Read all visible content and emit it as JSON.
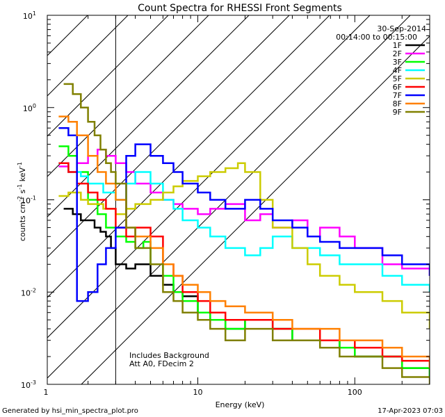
{
  "chart_data": {
    "type": "line",
    "title": "Count Spectra for RHESSI Front Segments",
    "xlabel": "Energy (keV)",
    "ylabel_parts": {
      "base": "counts cm",
      "exp1": "-2",
      "mid": " s",
      "exp2": "-1",
      "unit": " keV",
      "exp3": "-1"
    },
    "xscale": "log",
    "yscale": "log",
    "xlim": [
      1.1,
      300
    ],
    "ylim": [
      0.001,
      10
    ],
    "x_ticks": [
      {
        "v": 1,
        "label": "1"
      },
      {
        "v": 10,
        "label": "10"
      },
      {
        "v": 100,
        "label": "100"
      }
    ],
    "y_ticks": [
      {
        "v": 0.001,
        "base": "10",
        "exp": "-3"
      },
      {
        "v": 0.01,
        "base": "10",
        "exp": "-2"
      },
      {
        "v": 0.1,
        "base": "10",
        "exp": "-1"
      },
      {
        "v": 1,
        "base": "10",
        "exp": "0"
      },
      {
        "v": 10,
        "base": "10",
        "exp": "1"
      }
    ],
    "date": "30-Sep-2014",
    "time_range": "00:14:00 to 00:15:00",
    "annotation_lines": [
      "Includes Background",
      "Att A0, FDecim 2"
    ],
    "hatched_region": {
      "x0": 1.1,
      "x1": 3.0
    },
    "legend_placement": "top-right",
    "series": [
      {
        "name": "1F",
        "color": "#000000",
        "x": [
          1.4,
          1.6,
          1.8,
          2.0,
          2.2,
          2.4,
          2.6,
          2.8,
          3.0,
          3.5,
          4.0,
          5.0,
          6.0,
          7.0,
          8.0,
          10.0,
          12.0,
          15.0,
          20.0,
          30.0,
          40.0,
          60.0,
          80.0,
          100.0,
          150.0,
          200.0,
          300.0
        ],
        "y": [
          0.08,
          0.07,
          0.06,
          0.06,
          0.05,
          0.045,
          0.04,
          0.03,
          0.02,
          0.018,
          0.02,
          0.015,
          0.012,
          0.01,
          0.009,
          0.006,
          0.005,
          0.004,
          0.005,
          0.004,
          0.003,
          0.003,
          0.0025,
          0.002,
          0.002,
          0.0015,
          0.0012
        ]
      },
      {
        "name": "2F",
        "color": "#ff00ff",
        "x": [
          1.3,
          1.5,
          1.7,
          2.0,
          2.3,
          2.6,
          3.0,
          3.5,
          4.0,
          5.0,
          6.0,
          7.0,
          8.0,
          10.0,
          12.0,
          15.0,
          20.0,
          25.0,
          30.0,
          40.0,
          50.0,
          60.0,
          80.0,
          100.0,
          150.0,
          200.0,
          300.0
        ],
        "y": [
          0.23,
          0.2,
          0.25,
          0.3,
          0.35,
          0.3,
          0.25,
          0.2,
          0.15,
          0.12,
          0.1,
          0.09,
          0.08,
          0.07,
          0.08,
          0.09,
          0.06,
          0.07,
          0.05,
          0.06,
          0.04,
          0.05,
          0.04,
          0.03,
          0.02,
          0.018,
          0.015
        ]
      },
      {
        "name": "3F",
        "color": "#00ff00",
        "x": [
          1.3,
          1.5,
          1.7,
          2.0,
          2.3,
          2.6,
          3.0,
          3.5,
          4.0,
          4.5,
          5.0,
          6.0,
          7.0,
          8.0,
          10.0,
          12.0,
          15.0,
          20.0,
          30.0,
          40.0,
          60.0,
          80.0,
          100.0,
          150.0,
          200.0,
          300.0
        ],
        "y": [
          0.38,
          0.3,
          0.2,
          0.1,
          0.07,
          0.05,
          0.04,
          0.035,
          0.03,
          0.035,
          0.02,
          0.015,
          0.01,
          0.008,
          0.006,
          0.005,
          0.004,
          0.005,
          0.004,
          0.003,
          0.003,
          0.0025,
          0.002,
          0.002,
          0.0015,
          0.0012
        ]
      },
      {
        "name": "4F",
        "color": "#00ffff",
        "x": [
          1.3,
          1.5,
          1.8,
          2.0,
          2.5,
          3.0,
          3.5,
          4.0,
          5.0,
          6.0,
          7.0,
          8.0,
          10.0,
          12.0,
          15.0,
          20.0,
          25.0,
          30.0,
          40.0,
          50.0,
          60.0,
          80.0,
          100.0,
          150.0,
          200.0,
          300.0
        ],
        "y": [
          0.25,
          0.2,
          0.18,
          0.15,
          0.12,
          0.1,
          0.15,
          0.2,
          0.15,
          0.1,
          0.08,
          0.06,
          0.05,
          0.04,
          0.03,
          0.025,
          0.03,
          0.04,
          0.03,
          0.03,
          0.025,
          0.02,
          0.02,
          0.015,
          0.012,
          0.01
        ]
      },
      {
        "name": "5F",
        "color": "#cccc00",
        "x": [
          1.3,
          1.5,
          1.8,
          2.0,
          2.5,
          3.0,
          3.5,
          4.0,
          5.0,
          6.0,
          7.0,
          8.0,
          10.0,
          12.0,
          15.0,
          18.0,
          20.0,
          25.0,
          30.0,
          40.0,
          50.0,
          60.0,
          80.0,
          100.0,
          150.0,
          200.0,
          300.0
        ],
        "y": [
          0.11,
          0.12,
          0.1,
          0.09,
          0.08,
          0.07,
          0.08,
          0.09,
          0.1,
          0.12,
          0.14,
          0.16,
          0.18,
          0.2,
          0.22,
          0.25,
          0.2,
          0.1,
          0.05,
          0.03,
          0.02,
          0.015,
          0.012,
          0.01,
          0.008,
          0.006,
          0.004
        ]
      },
      {
        "name": "6F",
        "color": "#ff0000",
        "x": [
          1.3,
          1.5,
          1.7,
          2.0,
          2.3,
          2.6,
          3.0,
          3.5,
          4.0,
          5.0,
          6.0,
          7.0,
          8.0,
          10.0,
          12.0,
          15.0,
          20.0,
          30.0,
          40.0,
          60.0,
          80.0,
          100.0,
          150.0,
          200.0,
          300.0
        ],
        "y": [
          0.25,
          0.2,
          0.15,
          0.12,
          0.1,
          0.08,
          0.05,
          0.04,
          0.05,
          0.04,
          0.02,
          0.015,
          0.01,
          0.008,
          0.006,
          0.005,
          0.005,
          0.004,
          0.004,
          0.003,
          0.003,
          0.0025,
          0.002,
          0.0018,
          0.0015
        ]
      },
      {
        "name": "7F",
        "color": "#0000ff",
        "x": [
          1.3,
          1.5,
          1.7,
          2.0,
          2.3,
          2.6,
          3.0,
          3.5,
          4.0,
          5.0,
          6.0,
          7.0,
          8.0,
          10.0,
          12.0,
          15.0,
          20.0,
          25.0,
          30.0,
          40.0,
          50.0,
          60.0,
          80.0,
          100.0,
          150.0,
          200.0,
          300.0
        ],
        "y": [
          0.6,
          0.5,
          0.008,
          0.01,
          0.02,
          0.03,
          0.05,
          0.3,
          0.4,
          0.3,
          0.25,
          0.2,
          0.15,
          0.12,
          0.1,
          0.08,
          0.1,
          0.08,
          0.06,
          0.05,
          0.04,
          0.035,
          0.03,
          0.03,
          0.025,
          0.02,
          0.015
        ]
      },
      {
        "name": "8F",
        "color": "#ff8000",
        "x": [
          1.3,
          1.5,
          1.7,
          2.0,
          2.3,
          2.6,
          3.0,
          3.5,
          4.0,
          5.0,
          6.0,
          7.0,
          8.0,
          10.0,
          12.0,
          15.0,
          20.0,
          30.0,
          40.0,
          60.0,
          80.0,
          100.0,
          150.0,
          200.0,
          300.0
        ],
        "y": [
          0.8,
          0.7,
          0.5,
          0.3,
          0.2,
          0.15,
          0.1,
          0.05,
          0.04,
          0.03,
          0.02,
          0.015,
          0.012,
          0.01,
          0.008,
          0.007,
          0.006,
          0.005,
          0.004,
          0.004,
          0.003,
          0.003,
          0.0025,
          0.002,
          0.0015
        ]
      },
      {
        "name": "9F",
        "color": "#808000",
        "x": [
          1.4,
          1.6,
          1.8,
          2.0,
          2.2,
          2.4,
          2.6,
          2.8,
          3.0,
          3.5,
          4.0,
          5.0,
          6.0,
          7.0,
          8.0,
          10.0,
          12.0,
          15.0,
          20.0,
          30.0,
          40.0,
          60.0,
          80.0,
          100.0,
          150.0,
          200.0,
          300.0
        ],
        "y": [
          1.8,
          1.4,
          1.0,
          0.7,
          0.5,
          0.35,
          0.25,
          0.2,
          0.15,
          0.05,
          0.03,
          0.02,
          0.01,
          0.008,
          0.006,
          0.005,
          0.004,
          0.003,
          0.004,
          0.003,
          0.003,
          0.0025,
          0.002,
          0.002,
          0.0015,
          0.0012,
          0.001
        ]
      }
    ]
  },
  "footer": {
    "generated_by": "Generated by hsi_min_spectra_plot.pro",
    "timestamp": "17-Apr-2023 07:03"
  }
}
